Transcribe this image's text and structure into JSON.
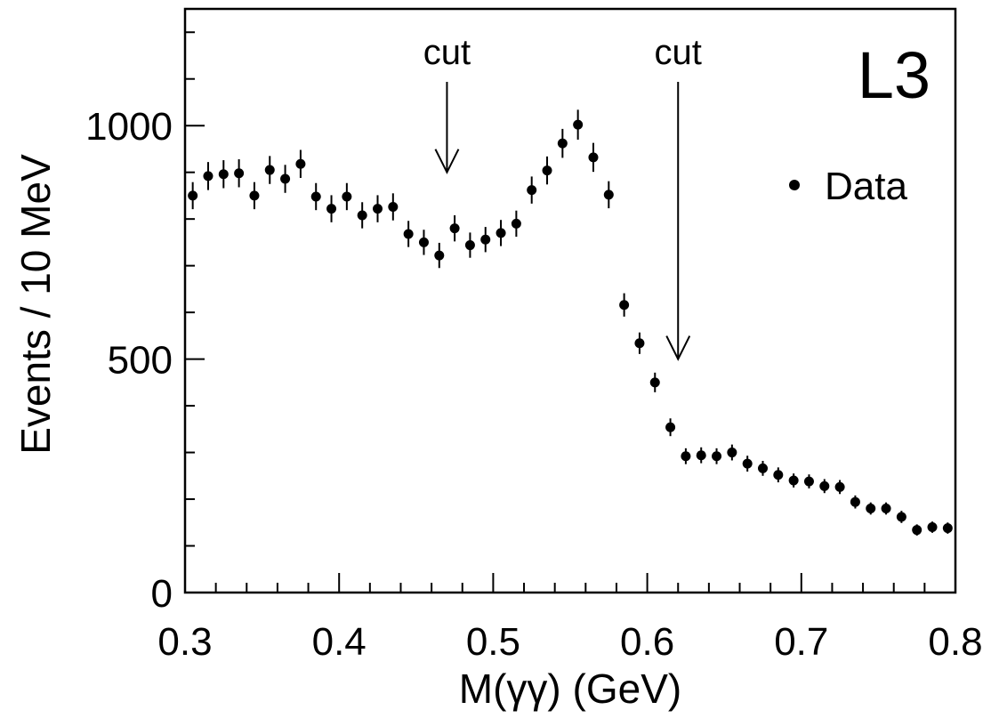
{
  "chart_data": {
    "type": "scatter",
    "experiment_label": "L3",
    "xlabel": "M(γγ)  (GeV)",
    "ylabel": "Events / 10 MeV",
    "xlim": [
      0.3,
      0.8
    ],
    "ylim": [
      0,
      1250
    ],
    "x_ticks": [
      0.3,
      0.4,
      0.5,
      0.6,
      0.7,
      0.8
    ],
    "x_tick_labels": [
      "0.3",
      "0.4",
      "0.5",
      "0.6",
      "0.7",
      "0.8"
    ],
    "y_ticks": [
      0,
      500,
      1000
    ],
    "y_tick_labels": [
      "0",
      "500",
      "1000"
    ],
    "legend": {
      "entries": [
        "Data"
      ],
      "position": "top-right"
    },
    "annotations": [
      {
        "text": "cut",
        "x": 0.47,
        "arrow_tip_y": 900
      },
      {
        "text": "cut",
        "x": 0.62,
        "arrow_tip_y": 500
      }
    ],
    "grid": false,
    "series": [
      {
        "name": "Data",
        "x": [
          0.305,
          0.315,
          0.325,
          0.335,
          0.345,
          0.355,
          0.365,
          0.375,
          0.385,
          0.395,
          0.405,
          0.415,
          0.425,
          0.435,
          0.445,
          0.455,
          0.465,
          0.475,
          0.485,
          0.495,
          0.505,
          0.515,
          0.525,
          0.535,
          0.545,
          0.555,
          0.565,
          0.575,
          0.585,
          0.595,
          0.605,
          0.615,
          0.625,
          0.635,
          0.645,
          0.655,
          0.665,
          0.675,
          0.685,
          0.695,
          0.705,
          0.715,
          0.725,
          0.735,
          0.745,
          0.755,
          0.765,
          0.775,
          0.785,
          0.795
        ],
        "y": [
          850,
          892,
          896,
          898,
          850,
          905,
          886,
          918,
          848,
          822,
          848,
          808,
          822,
          826,
          768,
          750,
          722,
          780,
          744,
          756,
          770,
          790,
          862,
          904,
          962,
          1002,
          932,
          852,
          616,
          534,
          450,
          354,
          292,
          294,
          292,
          300,
          276,
          266,
          252,
          240,
          238,
          228,
          226,
          194,
          180,
          180,
          162,
          134,
          140,
          138
        ],
        "yerr": [
          29,
          30,
          30,
          30,
          29,
          30,
          30,
          30,
          29,
          29,
          29,
          28,
          29,
          29,
          28,
          27,
          27,
          28,
          27,
          27,
          28,
          28,
          29,
          30,
          31,
          32,
          31,
          29,
          25,
          23,
          21,
          19,
          17,
          17,
          17,
          17,
          17,
          16,
          16,
          15,
          15,
          15,
          15,
          14,
          13,
          13,
          13,
          12,
          12,
          12
        ]
      }
    ]
  }
}
